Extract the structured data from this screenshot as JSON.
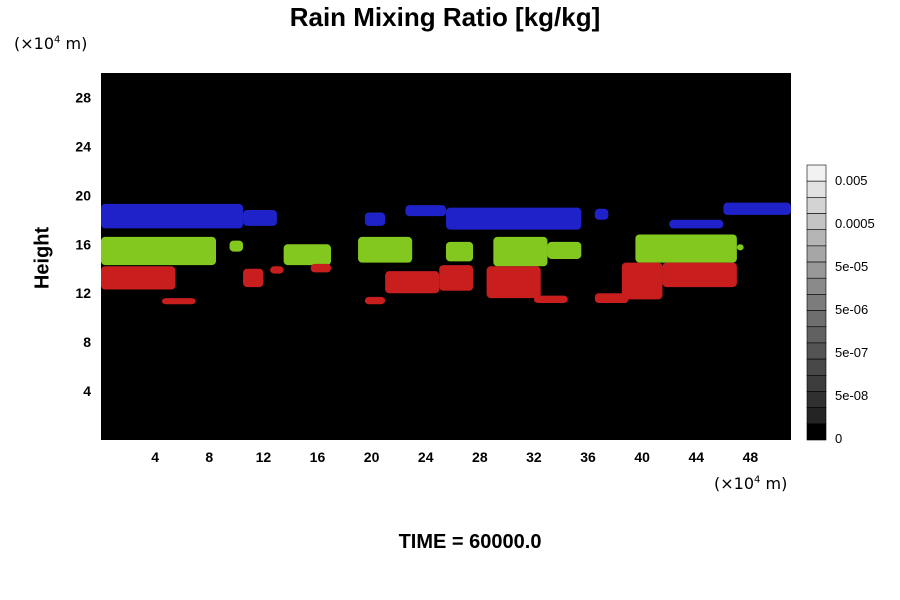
{
  "chart_data": {
    "type": "heatmap",
    "title": "Rain Mixing Ratio [kg/kg]",
    "ylabel": "Height",
    "xlabel": "",
    "x_unit": {
      "prefix": "(×10",
      "exp": "4",
      "suffix": " m)"
    },
    "y_unit": {
      "prefix": "(×10",
      "exp": "4",
      "suffix": " m)"
    },
    "xlim": [
      0,
      51
    ],
    "ylim": [
      0,
      30
    ],
    "x_ticks": [
      4,
      8,
      12,
      16,
      20,
      24,
      28,
      32,
      36,
      40,
      44,
      48
    ],
    "y_ticks": [
      4,
      8,
      12,
      16,
      20,
      24,
      28
    ],
    "background": "#000000",
    "bands": [
      {
        "layer": "blue",
        "color": "#1e22c8",
        "regions": [
          {
            "x": [
              0,
              10.5
            ],
            "y": [
              17.3,
              19.3
            ]
          },
          {
            "x": [
              10.5,
              13
            ],
            "y": [
              17.5,
              18.8
            ]
          },
          {
            "x": [
              19.5,
              21
            ],
            "y": [
              17.5,
              18.6
            ]
          },
          {
            "x": [
              22.5,
              25.5
            ],
            "y": [
              18.3,
              19.2
            ]
          },
          {
            "x": [
              25.5,
              35.5
            ],
            "y": [
              17.2,
              19.0
            ]
          },
          {
            "x": [
              36.5,
              37.5
            ],
            "y": [
              18.0,
              18.9
            ]
          },
          {
            "x": [
              42,
              46
            ],
            "y": [
              17.3,
              18.0
            ]
          },
          {
            "x": [
              46,
              51
            ],
            "y": [
              18.4,
              19.4
            ]
          }
        ]
      },
      {
        "layer": "green",
        "color": "#82c81e",
        "regions": [
          {
            "x": [
              0,
              8.5
            ],
            "y": [
              14.3,
              16.6
            ]
          },
          {
            "x": [
              9.5,
              10.5
            ],
            "y": [
              15.4,
              16.3
            ]
          },
          {
            "x": [
              13.5,
              17
            ],
            "y": [
              14.3,
              16.0
            ]
          },
          {
            "x": [
              19,
              23
            ],
            "y": [
              14.5,
              16.6
            ]
          },
          {
            "x": [
              25.5,
              27.5
            ],
            "y": [
              14.6,
              16.2
            ]
          },
          {
            "x": [
              29,
              33
            ],
            "y": [
              14.2,
              16.6
            ]
          },
          {
            "x": [
              33,
              35.5
            ],
            "y": [
              14.8,
              16.2
            ]
          },
          {
            "x": [
              39.5,
              47
            ],
            "y": [
              14.5,
              16.8
            ]
          },
          {
            "x": [
              47,
              47.5
            ],
            "y": [
              15.5,
              16.0
            ]
          }
        ]
      },
      {
        "layer": "red",
        "color": "#c81e1e",
        "regions": [
          {
            "x": [
              0,
              5.5
            ],
            "y": [
              12.3,
              14.2
            ]
          },
          {
            "x": [
              4.5,
              7
            ],
            "y": [
              11.1,
              11.6
            ]
          },
          {
            "x": [
              10.5,
              12
            ],
            "y": [
              12.5,
              14.0
            ]
          },
          {
            "x": [
              12.5,
              13.5
            ],
            "y": [
              13.6,
              14.2
            ]
          },
          {
            "x": [
              15.5,
              17
            ],
            "y": [
              13.7,
              14.4
            ]
          },
          {
            "x": [
              19.5,
              21
            ],
            "y": [
              11.1,
              11.7
            ]
          },
          {
            "x": [
              21,
              25
            ],
            "y": [
              12.0,
              13.8
            ]
          },
          {
            "x": [
              25,
              27.5
            ],
            "y": [
              12.2,
              14.3
            ]
          },
          {
            "x": [
              28.5,
              32.5
            ],
            "y": [
              11.6,
              14.2
            ]
          },
          {
            "x": [
              32,
              34.5
            ],
            "y": [
              11.2,
              11.8
            ]
          },
          {
            "x": [
              36.5,
              39
            ],
            "y": [
              11.2,
              12.0
            ]
          },
          {
            "x": [
              38.5,
              41.5
            ],
            "y": [
              11.5,
              14.5
            ]
          },
          {
            "x": [
              41.5,
              47
            ],
            "y": [
              12.5,
              14.5
            ]
          }
        ]
      }
    ],
    "colorbar": {
      "labels": [
        "0.005",
        "0.0005",
        "5e-05",
        "5e-06",
        "5e-07",
        "5e-08",
        "0"
      ],
      "grays": [
        "#f2f2f2",
        "#e2e2e2",
        "#d3d3d3",
        "#c4c4c4",
        "#b5b5b5",
        "#a6a6a6",
        "#989898",
        "#8a8a8a",
        "#7c7c7c",
        "#6e6e6e",
        "#616161",
        "#545454",
        "#484848",
        "#3c3c3c",
        "#303030",
        "#242424",
        "#000000"
      ]
    }
  },
  "footer": {
    "time_label": "TIME = ",
    "time_value": "60000.0"
  }
}
